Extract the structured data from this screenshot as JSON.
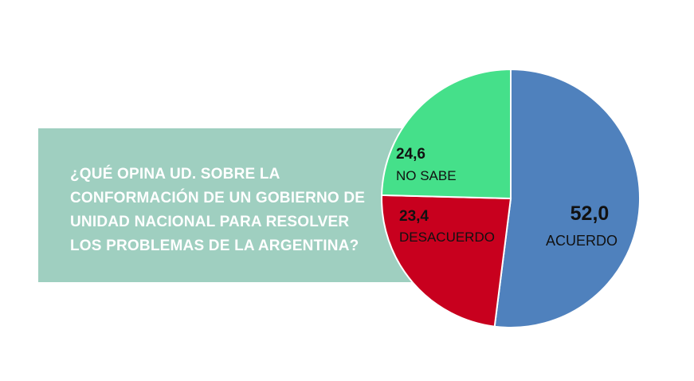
{
  "question": {
    "lines": [
      "¿QUÉ OPINA UD. SOBRE LA",
      "CONFORMACIÓN DE UN GOBIERNO DE",
      "UNIDAD NACIONAL PARA RESOLVER",
      "LOS PROBLEMAS DE LA ARGENTINA?"
    ]
  },
  "chart_data": {
    "type": "pie",
    "title": "",
    "slices": [
      {
        "label": "ACUERDO",
        "value": 52.0,
        "value_text": "52,0",
        "color": "#4f81bd"
      },
      {
        "label": "DESACUERDO",
        "value": 23.4,
        "value_text": "23,4",
        "color": "#c8001e"
      },
      {
        "label": "NO SABE",
        "value": 24.6,
        "value_text": "24,6",
        "color": "#45e08a"
      }
    ],
    "start_angle_deg": 0,
    "direction": "clockwise",
    "legend": "none"
  }
}
